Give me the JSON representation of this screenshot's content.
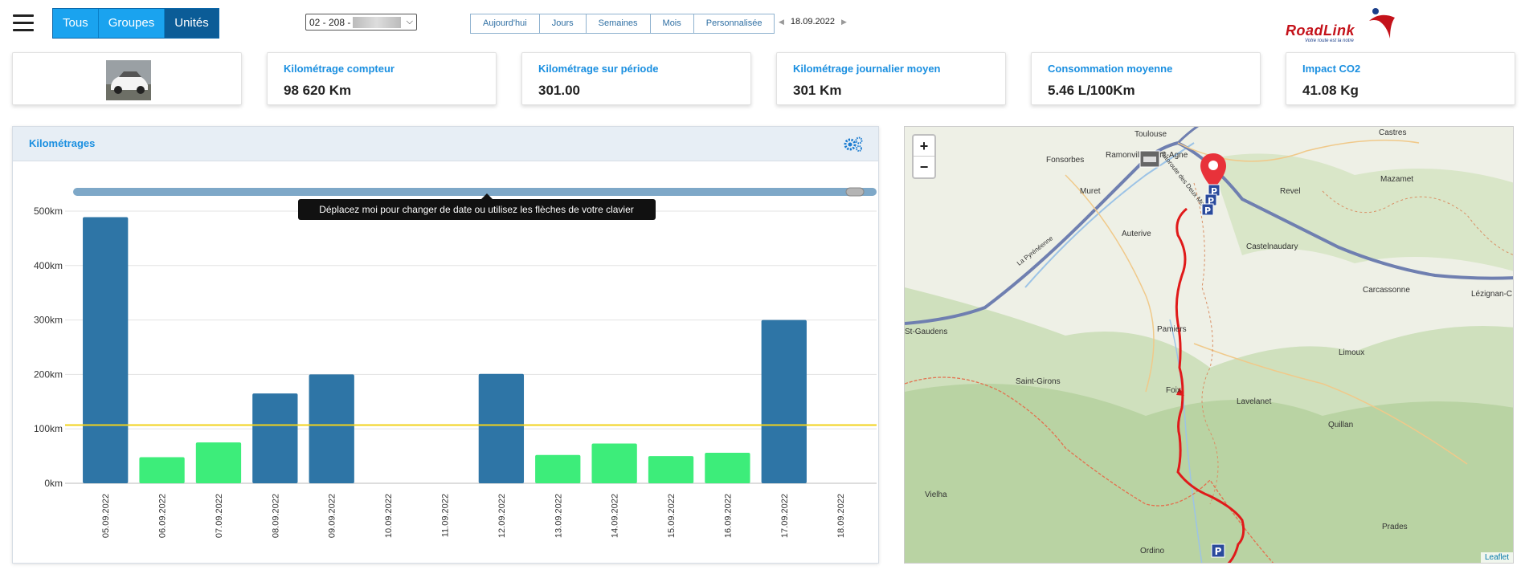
{
  "toolbar": {
    "segments": [
      {
        "label": "Tous",
        "active": false
      },
      {
        "label": "Groupes",
        "active": false
      },
      {
        "label": "Unités",
        "active": true
      }
    ],
    "vehicle_select": "02 - 208 -",
    "periods": [
      "Aujourd'hui",
      "Jours",
      "Semaines",
      "Mois",
      "Personnalisée"
    ],
    "current_date": "18.09.2022"
  },
  "logo": {
    "text": "RoadLink",
    "tagline": "Votre route est la notre"
  },
  "kpis": [
    {
      "label": "Kilométrage compteur",
      "value": "98 620 Km"
    },
    {
      "label": "Kilométrage sur période",
      "value": "301.00"
    },
    {
      "label": "Kilométrage journalier moyen",
      "value": "301 Km"
    },
    {
      "label": "Consommation moyenne",
      "value": "5.46 L/100Km"
    },
    {
      "label": "Impact CO2",
      "value": "41.08 Kg"
    }
  ],
  "chart_panel": {
    "title": "Kilométrages",
    "tooltip": "Déplacez moi pour changer de date ou utilisez les flèches de votre clavier"
  },
  "chart_data": {
    "type": "bar",
    "categories": [
      "05.09.2022",
      "06.09.2022",
      "07.09.2022",
      "08.09.2022",
      "09.09.2022",
      "10.09.2022",
      "11.09.2022",
      "12.09.2022",
      "13.09.2022",
      "14.09.2022",
      "15.09.2022",
      "16.09.2022",
      "17.09.2022",
      "18.09.2022"
    ],
    "values": [
      489,
      48,
      75,
      165,
      200,
      0,
      0,
      201,
      52,
      73,
      50,
      56,
      300,
      0
    ],
    "colors": [
      "#2e75a6",
      "#3ded7a",
      "#3ded7a",
      "#2e75a6",
      "#2e75a6",
      "#2e75a6",
      "#2e75a6",
      "#2e75a6",
      "#3ded7a",
      "#3ded7a",
      "#3ded7a",
      "#3ded7a",
      "#2e75a6",
      "#2e75a6"
    ],
    "yticks": [
      "0km",
      "100km",
      "200km",
      "300km",
      "400km",
      "500km"
    ],
    "ylim": [
      0,
      500
    ],
    "average_line": 107,
    "average_color": "#f2d21b",
    "grid": true
  },
  "map": {
    "zoom_in": "+",
    "zoom_out": "−",
    "attribution": "Leaflet",
    "places": [
      "Toulouse",
      "Castres",
      "Fonsorbes",
      "Ramonville-Saint-Agne",
      "Mazamet",
      "Muret",
      "Revel",
      "Auterive",
      "Castelnaudary",
      "Carcassonne",
      "Lézignan-C",
      "St-Gaudens",
      "Pamiers",
      "Limoux",
      "Saint-Girons",
      "Foix",
      "Lavelanet",
      "Quillan",
      "Vielha",
      "Prades",
      "Ordino",
      "La Pyrénéenne",
      "Autoroute des Deux Mers"
    ]
  }
}
